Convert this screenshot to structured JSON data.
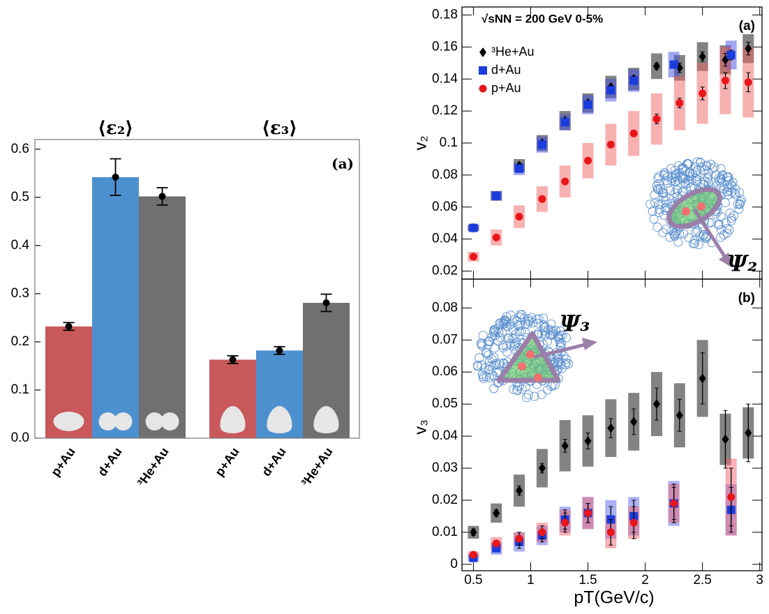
{
  "chart_data": [
    {
      "type": "bar",
      "panel_label": "(a)",
      "ylim": [
        0,
        0.62
      ],
      "yticks": [
        {
          "value": 0,
          "label": "0.0"
        },
        0.1,
        0.2,
        0.3,
        0.4,
        0.5,
        0.6
      ],
      "series": [
        {
          "name": "⟨ε₂⟩",
          "categories": [
            "p+Au",
            "d+Au",
            "³He+Au"
          ],
          "values": [
            0.232,
            0.542,
            0.502
          ],
          "errors": [
            0.008,
            0.038,
            0.018
          ],
          "colors": [
            "#c9585a",
            "#4d90cf",
            "#707070"
          ]
        },
        {
          "name": "⟨ε₃⟩",
          "categories": [
            "p+Au",
            "d+Au",
            "³He+Au"
          ],
          "values": [
            0.163,
            0.182,
            0.281
          ],
          "errors": [
            0.008,
            0.008,
            0.018
          ],
          "colors": [
            "#c9585a",
            "#4d90cf",
            "#707070"
          ]
        }
      ]
    },
    {
      "type": "scatter",
      "title": "√sNN = 200 GeV 0-5%",
      "panel_label": "(a)",
      "ylabel": "v₂",
      "annotation": "Ψ₂",
      "xlim": [
        0.4,
        3.02
      ],
      "xticks": [
        0.5,
        1,
        1.5,
        2,
        2.5,
        3
      ],
      "xtick_labels": false,
      "ylim": [
        0.015,
        0.185
      ],
      "yticks": [
        0.02,
        0.04,
        0.06,
        0.08,
        0.1,
        0.12,
        0.14,
        0.16,
        0.18
      ],
      "legend": "upper left",
      "series": [
        {
          "name": "³He+Au",
          "color": "#000000",
          "sys_color": "rgba(90,90,90,0.75)",
          "marker": "diamond",
          "x": [
            0.5,
            0.7,
            0.9,
            1.1,
            1.3,
            1.5,
            1.7,
            1.9,
            2.1,
            2.3,
            2.5,
            2.7,
            2.9
          ],
          "values": [
            0.047,
            0.067,
            0.086,
            0.1,
            0.114,
            0.125,
            0.135,
            0.14,
            0.148,
            0.147,
            0.154,
            0.152,
            0.159
          ],
          "errors": [
            0.0005,
            0.0005,
            0.0008,
            0.001,
            0.001,
            0.001,
            0.0015,
            0.002,
            0.002,
            0.003,
            0.003,
            0.004,
            0.004
          ],
          "sys": [
            0.002,
            0.003,
            0.004,
            0.005,
            0.006,
            0.006,
            0.007,
            0.007,
            0.008,
            0.008,
            0.009,
            0.009,
            0.009
          ]
        },
        {
          "name": "d+Au",
          "color": "#1a3cdc",
          "sys_color": "rgba(70,80,230,0.5)",
          "marker": "square",
          "x": [
            0.5,
            0.7,
            0.9,
            1.1,
            1.3,
            1.5,
            1.7,
            1.9,
            2.25,
            2.75
          ],
          "values": [
            0.047,
            0.067,
            0.084,
            0.099,
            0.113,
            0.124,
            0.133,
            0.139,
            0.149,
            0.155
          ],
          "errors": [
            0.0005,
            0.0005,
            0.0008,
            0.001,
            0.001,
            0.001,
            0.001,
            0.0015,
            0.002,
            0.003
          ],
          "sys": [
            0.002,
            0.003,
            0.004,
            0.005,
            0.005,
            0.006,
            0.007,
            0.007,
            0.008,
            0.009
          ]
        },
        {
          "name": "p+Au",
          "color": "#e8161b",
          "sys_color": "rgba(240,100,100,0.5)",
          "marker": "circle",
          "x": [
            0.5,
            0.7,
            0.9,
            1.1,
            1.3,
            1.5,
            1.7,
            1.9,
            2.1,
            2.3,
            2.5,
            2.7,
            2.9
          ],
          "values": [
            0.029,
            0.041,
            0.054,
            0.065,
            0.076,
            0.089,
            0.099,
            0.106,
            0.115,
            0.125,
            0.131,
            0.139,
            0.138
          ],
          "errors": [
            0.0005,
            0.0008,
            0.001,
            0.001,
            0.001,
            0.0015,
            0.002,
            0.002,
            0.003,
            0.003,
            0.004,
            0.005,
            0.006
          ],
          "sys": [
            0.003,
            0.005,
            0.007,
            0.008,
            0.01,
            0.011,
            0.013,
            0.014,
            0.016,
            0.017,
            0.019,
            0.021,
            0.022
          ]
        }
      ]
    },
    {
      "type": "scatter",
      "panel_label": "(b)",
      "ylabel": "v₃",
      "xlabel": "pT(GeV/c)",
      "annotation": "Ψ₃",
      "xlim": [
        0.4,
        3.02
      ],
      "xticks": [
        0.5,
        1,
        1.5,
        2,
        2.5,
        3
      ],
      "xtick_labels": true,
      "ylim": [
        -0.002,
        0.089
      ],
      "yticks": [
        0,
        0.01,
        0.02,
        0.03,
        0.04,
        0.05,
        0.06,
        0.07,
        0.08
      ],
      "series": [
        {
          "color": "#000000",
          "sys_color": "rgba(90,90,90,0.75)",
          "marker": "diamond",
          "x": [
            0.5,
            0.7,
            0.9,
            1.1,
            1.3,
            1.5,
            1.7,
            1.9,
            2.1,
            2.3,
            2.5,
            2.7,
            2.9
          ],
          "values": [
            0.01,
            0.016,
            0.023,
            0.03,
            0.037,
            0.0385,
            0.0425,
            0.0445,
            0.05,
            0.0465,
            0.058,
            0.039,
            0.041
          ],
          "errors": [
            0.001,
            0.001,
            0.0015,
            0.0015,
            0.002,
            0.0025,
            0.003,
            0.004,
            0.005,
            0.005,
            0.008,
            0.009,
            0.009
          ],
          "sys": [
            0.002,
            0.003,
            0.005,
            0.006,
            0.008,
            0.008,
            0.009,
            0.009,
            0.01,
            0.01,
            0.012,
            0.008,
            0.008
          ]
        },
        {
          "color": "#1a3cdc",
          "sys_color": "rgba(70,80,230,0.45)",
          "marker": "square",
          "x": [
            0.5,
            0.7,
            0.9,
            1.1,
            1.3,
            1.5,
            1.7,
            1.9,
            2.25,
            2.75
          ],
          "values": [
            0.002,
            0.005,
            0.007,
            0.009,
            0.014,
            0.016,
            0.014,
            0.015,
            0.019,
            0.017
          ],
          "errors": [
            0.001,
            0.001,
            0.002,
            0.002,
            0.003,
            0.003,
            0.004,
            0.005,
            0.005,
            0.007
          ],
          "sys": [
            0.001,
            0.002,
            0.003,
            0.003,
            0.004,
            0.005,
            0.006,
            0.006,
            0.007,
            0.008
          ]
        },
        {
          "color": "#e8161b",
          "sys_color": "rgba(240,100,110,0.5)",
          "marker": "circle",
          "x": [
            0.5,
            0.7,
            0.9,
            1.1,
            1.3,
            1.5,
            1.7,
            1.9,
            2.25,
            2.75
          ],
          "values": [
            0.003,
            0.0065,
            0.008,
            0.01,
            0.013,
            0.016,
            0.01,
            0.013,
            0.019,
            0.021
          ],
          "errors": [
            0.001,
            0.001,
            0.002,
            0.002,
            0.003,
            0.003,
            0.004,
            0.005,
            0.006,
            0.009
          ],
          "sys": [
            0.001,
            0.002,
            0.002,
            0.003,
            0.004,
            0.005,
            0.005,
            0.005,
            0.006,
            0.012
          ]
        }
      ]
    }
  ]
}
